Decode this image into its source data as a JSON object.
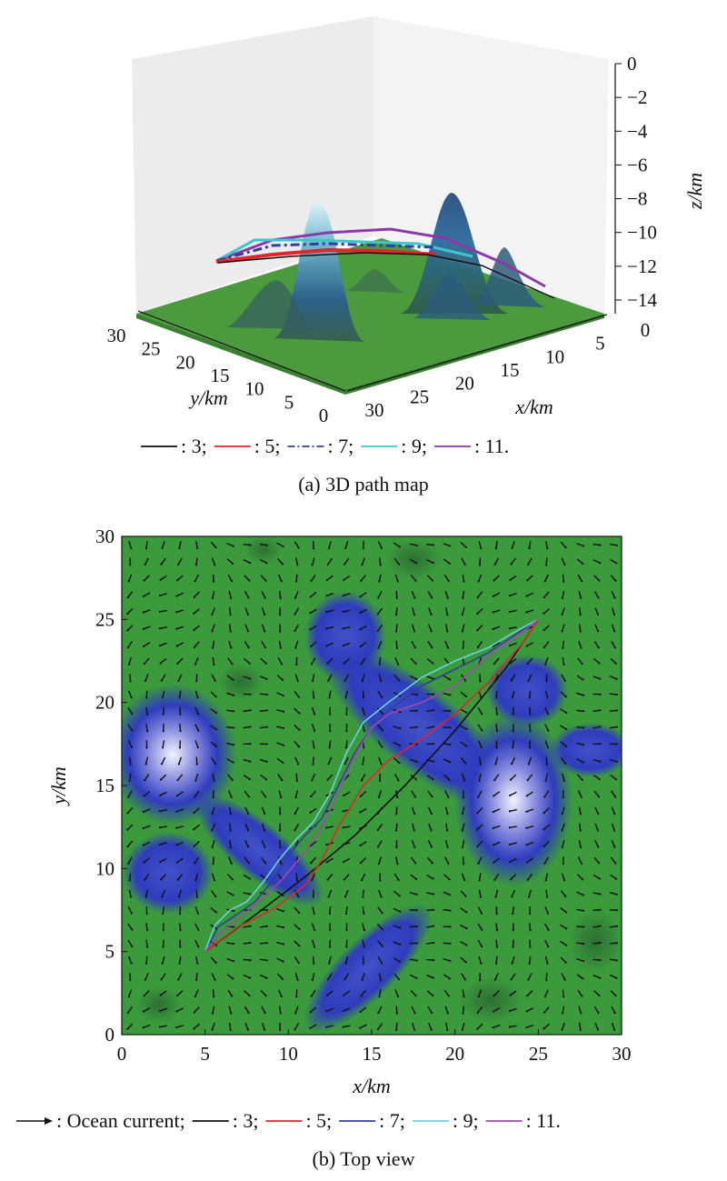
{
  "chart_data": [
    {
      "type": "surface",
      "caption": "(a) 3D path map",
      "zlabel": "z/km",
      "xlabel": "x/km",
      "ylabel": "y/km",
      "zticks": [
        0,
        -2,
        -4,
        -6,
        -8,
        -10,
        -12,
        -14
      ],
      "xticks": [
        30,
        25,
        20,
        15,
        10,
        5,
        0
      ],
      "yticks": [
        30,
        25,
        20,
        15,
        10,
        5,
        0
      ],
      "zlim": [
        -15,
        0
      ],
      "xlim": [
        0,
        30
      ],
      "ylim": [
        0,
        30
      ],
      "legend": [
        {
          "label": ": 3;",
          "color": "#111111",
          "style": "solid"
        },
        {
          "label": ": 5;",
          "color": "#e0262b",
          "style": "solid"
        },
        {
          "label": ": 7;",
          "color": "#2f3f9a",
          "style": "dashdot"
        },
        {
          "label": ": 9;",
          "color": "#3ec6c8",
          "style": "solid"
        },
        {
          "label": ": 11.",
          "color": "#8a3aa8",
          "style": "solid"
        }
      ]
    },
    {
      "type": "line",
      "caption": "(b) Top view",
      "xlabel": "x/km",
      "ylabel": "y/km",
      "xlim": [
        0,
        30
      ],
      "ylim": [
        0,
        30
      ],
      "xticks": [
        0,
        5,
        10,
        15,
        20,
        25,
        30
      ],
      "yticks": [
        0,
        5,
        10,
        15,
        20,
        25,
        30
      ],
      "colors": {
        "background": "#3b9a3c",
        "low": "#2a35b5",
        "high": "#ffffff",
        "arrow": "#111111"
      },
      "legend": [
        {
          "label": ": Ocean current;",
          "color": "#111111",
          "style": "arrow"
        },
        {
          "label": ": 3;",
          "color": "#111111",
          "style": "solid"
        },
        {
          "label": ": 5;",
          "color": "#e0262b",
          "style": "solid"
        },
        {
          "label": ": 7;",
          "color": "#2f3f9a",
          "style": "solid"
        },
        {
          "label": ": 9;",
          "color": "#6fd0e0",
          "style": "solid"
        },
        {
          "label": ": 11.",
          "color": "#a04ab0",
          "style": "solid"
        }
      ],
      "series": [
        {
          "color": "#111111",
          "x": [
            5,
            8,
            11,
            14,
            17,
            20,
            23,
            25
          ],
          "y": [
            5,
            7.2,
            9.5,
            12,
            15,
            18.3,
            22,
            25
          ]
        },
        {
          "color": "#e0262b",
          "x": [
            5,
            7,
            9,
            11,
            12,
            13,
            14.5,
            16,
            18,
            20,
            22,
            24,
            25
          ],
          "y": [
            5,
            6.5,
            7.5,
            9,
            10.5,
            12.5,
            15,
            16.5,
            17.8,
            19.3,
            21.2,
            23.5,
            25
          ]
        },
        {
          "color": "#2f3f9a",
          "x": [
            5,
            5.8,
            7,
            8,
            9,
            10,
            11,
            12,
            13,
            14,
            15,
            16,
            18,
            20,
            22,
            23.5,
            25
          ],
          "y": [
            5,
            6.5,
            7.3,
            8,
            9.2,
            10.8,
            12,
            13,
            15,
            17,
            18.5,
            19.5,
            21,
            22,
            23,
            24,
            25
          ]
        },
        {
          "color": "#6fd0e0",
          "x": [
            5,
            5.6,
            6.5,
            7.5,
            8.5,
            9.5,
            10.5,
            11.5,
            12.5,
            13.5,
            14.5,
            16,
            18,
            20,
            22,
            23.5,
            25
          ],
          "y": [
            5,
            6.6,
            7.5,
            8,
            9.2,
            10.6,
            11.8,
            12.8,
            14.5,
            17,
            18.8,
            20,
            21.5,
            22.5,
            23.3,
            24.2,
            25
          ]
        },
        {
          "color": "#a04ab0",
          "x": [
            5,
            6,
            7,
            8,
            9.5,
            11,
            12,
            13,
            14,
            15,
            16,
            18,
            20,
            22,
            24,
            25
          ],
          "y": [
            5,
            6.2,
            7,
            7.8,
            9.2,
            11,
            12.5,
            14.6,
            16.8,
            18.5,
            19.3,
            20,
            21,
            22.8,
            24.2,
            25
          ]
        }
      ]
    }
  ]
}
